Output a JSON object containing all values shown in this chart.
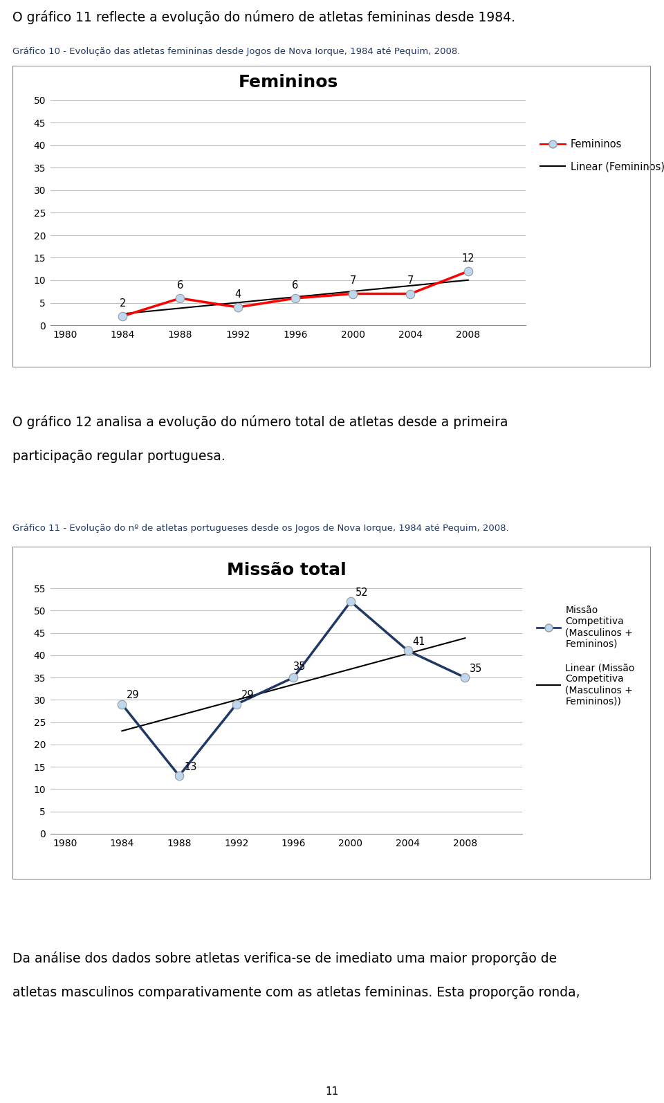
{
  "page_text_1": "O gráfico 11 reflecte a evolução do número de atletas femininas desde 1984.",
  "chart1_subtitle": "Gráfico 10 - Evolução das atletas femininas desde Jogos de Nova Iorque, 1984 até Pequim, 2008.",
  "chart1_title": "Femininos",
  "chart1_years": [
    1980,
    1984,
    1988,
    1992,
    1996,
    2000,
    2004,
    2008
  ],
  "chart1_data_years": [
    1984,
    1988,
    1992,
    1996,
    2000,
    2004,
    2008
  ],
  "chart1_data_values": [
    2,
    6,
    4,
    6,
    7,
    7,
    12
  ],
  "chart1_ylim": [
    0,
    50
  ],
  "chart1_yticks": [
    0,
    5,
    10,
    15,
    20,
    25,
    30,
    35,
    40,
    45,
    50
  ],
  "chart1_line_color": "#FF0000",
  "chart1_marker_face": "#BDD7EE",
  "chart1_linear_color": "#000000",
  "chart1_legend_labels": [
    "Femininos",
    "Linear (Femininos)"
  ],
  "middle_text_line1": "O gráfico 12 analisa a evolução do número total de atletas desde a primeira",
  "middle_text_line2": "participação regular portuguesa.",
  "chart2_subtitle": "Gráfico 11 - Evolução do nº de atletas portugueses desde os Jogos de Nova Iorque, 1984 até Pequim, 2008.",
  "chart2_title": "Missão total",
  "chart2_years": [
    1980,
    1984,
    1988,
    1992,
    1996,
    2000,
    2004,
    2008
  ],
  "chart2_data_years": [
    1984,
    1988,
    1992,
    1996,
    2000,
    2004,
    2008
  ],
  "chart2_data_values": [
    29,
    13,
    29,
    35,
    52,
    41,
    35
  ],
  "chart2_ylim": [
    0,
    55
  ],
  "chart2_yticks": [
    0,
    5,
    10,
    15,
    20,
    25,
    30,
    35,
    40,
    45,
    50,
    55
  ],
  "chart2_line_color": "#1F3864",
  "chart2_marker_face": "#BDD7EE",
  "chart2_linear_color": "#000000",
  "chart2_legend_label": "Missão\nCompetitiva\n(Masculinos +\nFemininos)",
  "chart2_legend_linear": "Linear (Missão\nCompetitiva\n(Masculinos +\nFemininos))",
  "bottom_text_line1": "Da análise dos dados sobre atletas verifica-se de imediato uma maior proporção de",
  "bottom_text_line2": "atletas masculinos comparativamente com as atletas femininas. Esta proporção ronda,",
  "page_number": "11",
  "subtitle_color": "#1F3864",
  "body_text_color": "#000000",
  "background_color": "#FFFFFF",
  "chart_border_color": "#AAAAAA",
  "grid_color": "#C0C0C0"
}
